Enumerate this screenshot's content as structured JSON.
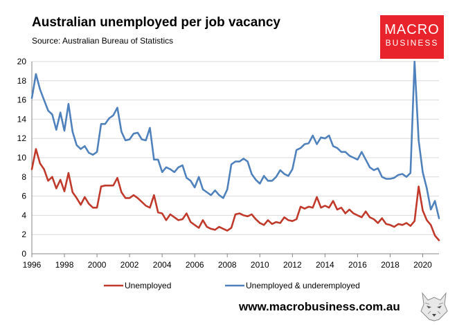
{
  "header": {
    "title": "Australian unemployed per job vacancy",
    "subtitle": "Source: Australian Bureau of Statistics"
  },
  "logo": {
    "line1": "MACRO",
    "line2": "BUSINESS",
    "color": "#e8232b"
  },
  "footer": {
    "url": "www.macrobusiness.com.au"
  },
  "chart_data": {
    "type": "line",
    "title": "Australian unemployed per job vacancy",
    "subtitle": "Source: Australian Bureau of Statistics",
    "xlabel": "",
    "ylabel": "",
    "xlim": [
      1996,
      2021
    ],
    "ylim": [
      0,
      20
    ],
    "x_ticks": [
      1996,
      1998,
      2000,
      2002,
      2004,
      2006,
      2008,
      2010,
      2012,
      2014,
      2016,
      2018,
      2020
    ],
    "y_ticks": [
      0,
      2,
      4,
      6,
      8,
      10,
      12,
      14,
      16,
      18,
      20
    ],
    "grid": "horizontal",
    "legend_position": "bottom",
    "series": [
      {
        "name": "Unemployed",
        "color": "#c0392b",
        "x": [
          1996.0,
          1996.25,
          1996.5,
          1996.75,
          1997.0,
          1997.25,
          1997.5,
          1997.75,
          1998.0,
          1998.25,
          1998.5,
          1998.75,
          1999.0,
          1999.25,
          1999.5,
          1999.75,
          2000.0,
          2000.25,
          2000.5,
          2000.75,
          2001.0,
          2001.25,
          2001.5,
          2001.75,
          2002.0,
          2002.25,
          2002.5,
          2002.75,
          2003.0,
          2003.25,
          2003.5,
          2003.75,
          2004.0,
          2004.25,
          2004.5,
          2004.75,
          2005.0,
          2005.25,
          2005.5,
          2005.75,
          2006.0,
          2006.25,
          2006.5,
          2006.75,
          2007.0,
          2007.25,
          2007.5,
          2007.75,
          2008.0,
          2008.25,
          2008.5,
          2008.75,
          2009.0,
          2009.25,
          2009.5,
          2009.75,
          2010.0,
          2010.25,
          2010.5,
          2010.75,
          2011.0,
          2011.25,
          2011.5,
          2011.75,
          2012.0,
          2012.25,
          2012.5,
          2012.75,
          2013.0,
          2013.25,
          2013.5,
          2013.75,
          2014.0,
          2014.25,
          2014.5,
          2014.75,
          2015.0,
          2015.25,
          2015.5,
          2015.75,
          2016.0,
          2016.25,
          2016.5,
          2016.75,
          2017.0,
          2017.25,
          2017.5,
          2017.75,
          2018.0,
          2018.25,
          2018.5,
          2018.75,
          2019.0,
          2019.25,
          2019.5,
          2019.75,
          2020.0,
          2020.25,
          2020.5,
          2020.75,
          2021.0
        ],
        "values": [
          8.8,
          10.9,
          9.4,
          8.8,
          7.6,
          8.0,
          6.8,
          7.7,
          6.5,
          8.4,
          6.4,
          5.8,
          5.1,
          5.9,
          5.2,
          4.8,
          4.8,
          7.0,
          7.1,
          7.1,
          7.1,
          7.9,
          6.4,
          5.8,
          5.8,
          6.1,
          5.8,
          5.4,
          5.0,
          4.8,
          6.1,
          4.3,
          4.2,
          3.5,
          4.1,
          3.8,
          3.5,
          3.6,
          4.2,
          3.3,
          3.0,
          2.7,
          3.5,
          2.8,
          2.6,
          2.5,
          2.8,
          2.6,
          2.4,
          2.7,
          4.1,
          4.2,
          4.0,
          3.9,
          4.1,
          3.6,
          3.2,
          3.0,
          3.5,
          3.1,
          3.3,
          3.2,
          3.8,
          3.5,
          3.4,
          3.6,
          4.9,
          4.7,
          4.9,
          4.8,
          5.9,
          4.8,
          5.0,
          4.8,
          5.5,
          4.6,
          4.8,
          4.2,
          4.6,
          4.2,
          4.0,
          3.8,
          4.4,
          3.8,
          3.6,
          3.2,
          3.7,
          3.1,
          3.0,
          2.8,
          3.1,
          3.0,
          3.2,
          2.9,
          3.4,
          7.0,
          4.5,
          3.5,
          3.0,
          1.9,
          1.4
        ]
      },
      {
        "name": "Unemployed & underemployed",
        "color": "#4f81bd",
        "x": [
          1996.0,
          1996.25,
          1996.5,
          1996.75,
          1997.0,
          1997.25,
          1997.5,
          1997.75,
          1998.0,
          1998.25,
          1998.5,
          1998.75,
          1999.0,
          1999.25,
          1999.5,
          1999.75,
          2000.0,
          2000.25,
          2000.5,
          2000.75,
          2001.0,
          2001.25,
          2001.5,
          2001.75,
          2002.0,
          2002.25,
          2002.5,
          2002.75,
          2003.0,
          2003.25,
          2003.5,
          2003.75,
          2004.0,
          2004.25,
          2004.5,
          2004.75,
          2005.0,
          2005.25,
          2005.5,
          2005.75,
          2006.0,
          2006.25,
          2006.5,
          2006.75,
          2007.0,
          2007.25,
          2007.5,
          2007.75,
          2008.0,
          2008.25,
          2008.5,
          2008.75,
          2009.0,
          2009.25,
          2009.5,
          2009.75,
          2010.0,
          2010.25,
          2010.5,
          2010.75,
          2011.0,
          2011.25,
          2011.5,
          2011.75,
          2012.0,
          2012.25,
          2012.5,
          2012.75,
          2013.0,
          2013.25,
          2013.5,
          2013.75,
          2014.0,
          2014.25,
          2014.5,
          2014.75,
          2015.0,
          2015.25,
          2015.5,
          2015.75,
          2016.0,
          2016.25,
          2016.5,
          2016.75,
          2017.0,
          2017.25,
          2017.5,
          2017.75,
          2018.0,
          2018.25,
          2018.5,
          2018.75,
          2019.0,
          2019.25,
          2019.5,
          2019.75,
          2020.0,
          2020.25,
          2020.5,
          2020.75,
          2021.0
        ],
        "values": [
          16.2,
          18.7,
          17.1,
          16.0,
          14.9,
          14.5,
          12.9,
          14.7,
          12.8,
          15.6,
          12.7,
          11.3,
          10.9,
          11.2,
          10.5,
          10.3,
          10.6,
          13.5,
          13.5,
          14.1,
          14.4,
          15.2,
          12.7,
          11.8,
          11.9,
          12.5,
          12.6,
          11.9,
          11.8,
          13.1,
          9.8,
          9.8,
          8.5,
          9.0,
          8.8,
          8.5,
          9.0,
          9.2,
          7.9,
          7.6,
          6.9,
          8.0,
          6.7,
          6.4,
          6.1,
          6.6,
          6.1,
          5.8,
          6.7,
          9.3,
          9.6,
          9.6,
          9.9,
          9.6,
          8.3,
          7.7,
          7.3,
          8.1,
          7.6,
          7.6,
          8.0,
          8.7,
          8.3,
          8.1,
          8.8,
          10.8,
          11.0,
          11.4,
          11.5,
          12.3,
          11.4,
          12.1,
          12.0,
          12.3,
          11.2,
          11.0,
          10.6,
          10.6,
          10.2,
          10.0,
          9.8,
          10.6,
          9.8,
          9.0,
          8.7,
          8.9,
          8.0,
          7.8,
          7.8,
          7.9,
          8.2,
          8.3,
          8.0,
          8.4,
          20.0,
          11.8,
          8.5,
          6.8,
          4.6,
          5.5,
          3.7
        ]
      }
    ]
  }
}
